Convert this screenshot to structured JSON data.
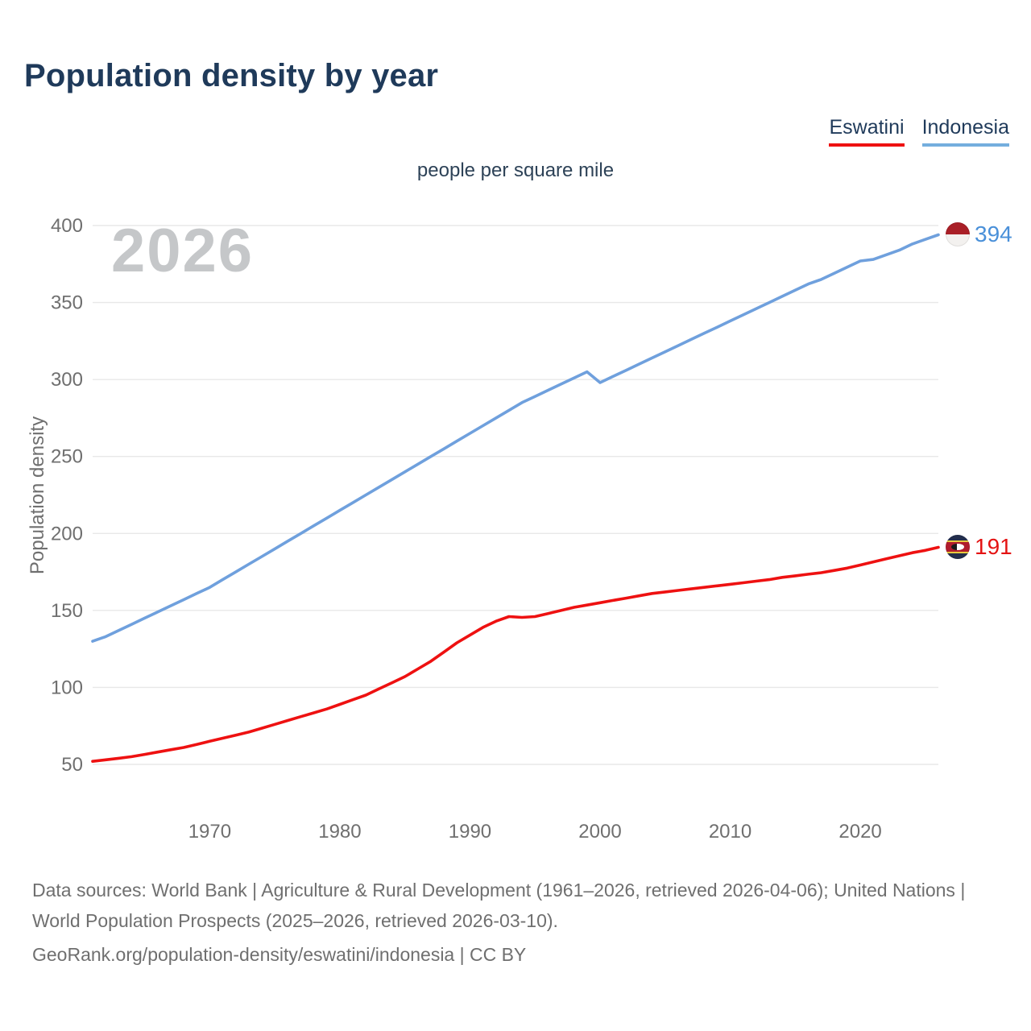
{
  "page": {
    "title": "Population density by year",
    "subtitle": "people per square mile",
    "watermark": "2026",
    "y_axis_title": "Population density"
  },
  "legend": {
    "eswatini": {
      "label": "Eswatini",
      "color": "#ee1111"
    },
    "indonesia": {
      "label": "Indonesia",
      "color": "#74aede"
    }
  },
  "end_labels": {
    "indonesia": {
      "value": "394",
      "flag": "indonesia-flag"
    },
    "eswatini": {
      "value": "191",
      "flag": "eswatini-flag"
    }
  },
  "footer": {
    "sources": "Data sources: World Bank | Agriculture & Rural Development (1961–2026, retrieved 2026-04-06); United Nations | World Population Prospects (2025–2026, retrieved 2026-03-10).",
    "attribution": "GeoRank.org/population-density/eswatini/indonesia | CC BY"
  },
  "chart_data": {
    "type": "line",
    "title": "Population density by year",
    "unit_label": "people per square mile",
    "ylabel": "Population density",
    "xlim": [
      1961,
      2026
    ],
    "ylim": [
      50,
      400
    ],
    "x_ticks": [
      1970,
      1980,
      1990,
      2000,
      2010,
      2020
    ],
    "y_ticks": [
      50,
      100,
      150,
      200,
      250,
      300,
      350,
      400
    ],
    "grid": true,
    "legend_position": "top-right",
    "x": [
      1961,
      1962,
      1963,
      1964,
      1965,
      1966,
      1967,
      1968,
      1969,
      1970,
      1971,
      1972,
      1973,
      1974,
      1975,
      1976,
      1977,
      1978,
      1979,
      1980,
      1981,
      1982,
      1983,
      1984,
      1985,
      1986,
      1987,
      1988,
      1989,
      1990,
      1991,
      1992,
      1993,
      1994,
      1995,
      1996,
      1997,
      1998,
      1999,
      2000,
      2001,
      2002,
      2003,
      2004,
      2005,
      2006,
      2007,
      2008,
      2009,
      2010,
      2011,
      2012,
      2013,
      2014,
      2015,
      2016,
      2017,
      2018,
      2019,
      2020,
      2021,
      2022,
      2023,
      2024,
      2025,
      2026
    ],
    "series": [
      {
        "name": "Indonesia",
        "color": "#6fa0dd",
        "end_value": 394,
        "values": [
          130,
          133,
          137,
          141,
          145,
          149,
          153,
          157,
          161,
          165,
          170,
          175,
          180,
          185,
          190,
          195,
          200,
          205,
          210,
          215,
          220,
          225,
          230,
          235,
          240,
          245,
          250,
          255,
          260,
          265,
          270,
          275,
          280,
          285,
          289,
          293,
          297,
          301,
          305,
          298,
          302,
          306,
          310,
          314,
          318,
          322,
          326,
          330,
          334,
          338,
          342,
          346,
          350,
          354,
          358,
          362,
          365,
          369,
          373,
          377,
          378,
          381,
          384,
          388,
          391,
          394
        ]
      },
      {
        "name": "Eswatini",
        "color": "#ee1111",
        "end_value": 191,
        "values": [
          52,
          53,
          54,
          55,
          56.5,
          58,
          59.5,
          61,
          63,
          65,
          67,
          69,
          71,
          73.5,
          76,
          78.5,
          81,
          83.5,
          86,
          89,
          92,
          95,
          99,
          103,
          107,
          112,
          117,
          123,
          129,
          134,
          139,
          143,
          146,
          145.5,
          146,
          148,
          150,
          152,
          153.5,
          155,
          156.5,
          158,
          159.5,
          161,
          162,
          163,
          164,
          165,
          166,
          167,
          168,
          169,
          170,
          171.5,
          172.5,
          173.5,
          174.5,
          176,
          177.5,
          179.5,
          181.5,
          183.5,
          185.5,
          187.5,
          189,
          191
        ]
      }
    ]
  }
}
